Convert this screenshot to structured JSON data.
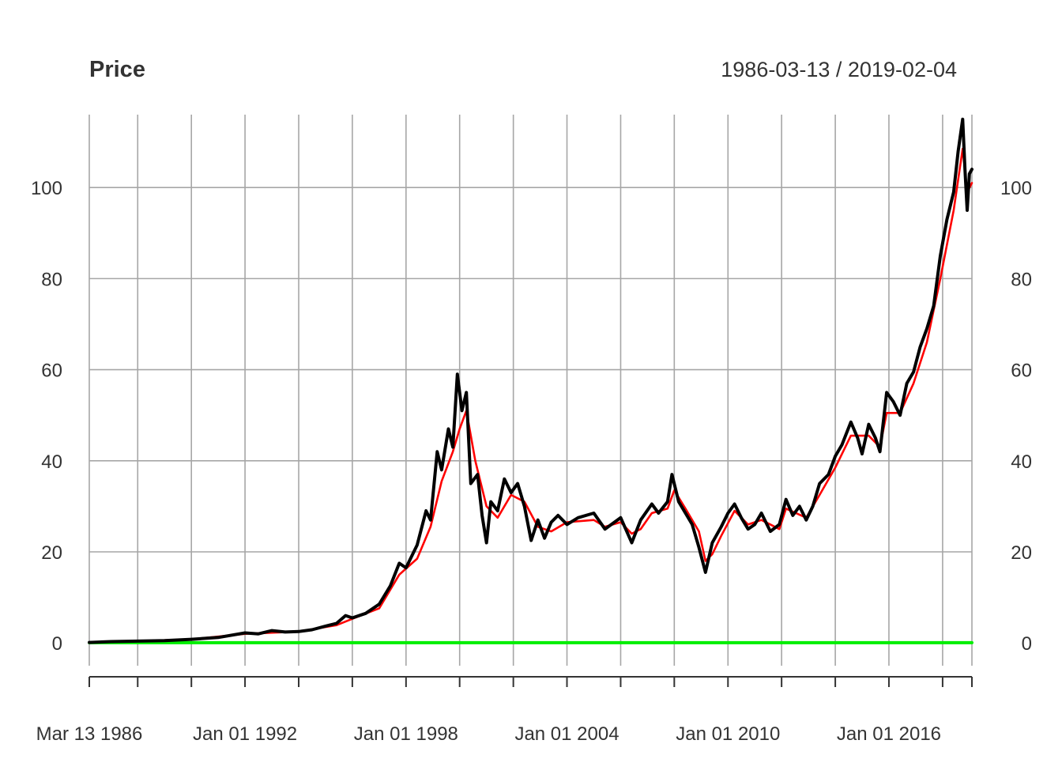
{
  "chart_data": {
    "type": "line",
    "title": "Price",
    "date_range_label": "1986-03-13 / 2019-02-04",
    "xlim": [
      "1986-03-13",
      "2019-02-04"
    ],
    "ylim": [
      -5,
      116
    ],
    "y_ticks": [
      0,
      20,
      40,
      60,
      80,
      100
    ],
    "x_tick_labels": [
      {
        "date": "1986-03-13",
        "label": "Mar 13 1986"
      },
      {
        "date": "1992-01-01",
        "label": "Jan 01 1992"
      },
      {
        "date": "1998-01-01",
        "label": "Jan 01 1998"
      },
      {
        "date": "2004-01-01",
        "label": "Jan 01 2004"
      },
      {
        "date": "2010-01-01",
        "label": "Jan 01 2010"
      },
      {
        "date": "2016-01-01",
        "label": "Jan 01 2016"
      }
    ],
    "grid_dates": [
      "1986-03-13",
      "1988-01-01",
      "1990-01-01",
      "1992-01-01",
      "1994-01-01",
      "1996-01-01",
      "1998-01-01",
      "2000-01-01",
      "2002-01-01",
      "2004-01-01",
      "2006-01-01",
      "2008-01-01",
      "2010-01-01",
      "2012-01-01",
      "2014-01-01",
      "2016-01-01",
      "2018-01-01",
      "2019-02-04"
    ],
    "grid": true,
    "series": [
      {
        "color": "#000000",
        "points": [
          [
            "1986-03-13",
            0.1
          ],
          [
            "1987-01-01",
            0.3
          ],
          [
            "1988-01-01",
            0.4
          ],
          [
            "1989-01-01",
            0.5
          ],
          [
            "1990-01-01",
            0.8
          ],
          [
            "1991-01-01",
            1.2
          ],
          [
            "1992-01-01",
            2.2
          ],
          [
            "1992-07-01",
            2.0
          ],
          [
            "1993-01-01",
            2.7
          ],
          [
            "1993-07-01",
            2.4
          ],
          [
            "1994-01-01",
            2.5
          ],
          [
            "1994-07-01",
            2.9
          ],
          [
            "1995-01-01",
            3.7
          ],
          [
            "1995-06-01",
            4.3
          ],
          [
            "1995-10-01",
            6.0
          ],
          [
            "1996-01-01",
            5.5
          ],
          [
            "1996-07-01",
            6.5
          ],
          [
            "1997-01-01",
            8.5
          ],
          [
            "1997-06-01",
            12.5
          ],
          [
            "1997-10-01",
            17.5
          ],
          [
            "1998-01-01",
            16.5
          ],
          [
            "1998-06-01",
            21.5
          ],
          [
            "1998-10-01",
            29.0
          ],
          [
            "1998-12-01",
            27.0
          ],
          [
            "1999-03-01",
            42.0
          ],
          [
            "1999-05-01",
            38.0
          ],
          [
            "1999-08-01",
            47.0
          ],
          [
            "1999-10-01",
            43.0
          ],
          [
            "1999-12-01",
            59.0
          ],
          [
            "2000-02-01",
            51.0
          ],
          [
            "2000-04-01",
            55.0
          ],
          [
            "2000-06-01",
            35.0
          ],
          [
            "2000-09-01",
            37.0
          ],
          [
            "2000-11-01",
            28.0
          ],
          [
            "2001-01-01",
            22.0
          ],
          [
            "2001-03-01",
            31.0
          ],
          [
            "2001-06-01",
            29.0
          ],
          [
            "2001-09-01",
            36.0
          ],
          [
            "2001-12-01",
            33.0
          ],
          [
            "2002-03-01",
            35.0
          ],
          [
            "2002-06-01",
            30.0
          ],
          [
            "2002-09-01",
            22.5
          ],
          [
            "2002-12-01",
            27.0
          ],
          [
            "2003-03-01",
            23.0
          ],
          [
            "2003-06-01",
            26.5
          ],
          [
            "2003-09-01",
            28.0
          ],
          [
            "2004-01-01",
            26.0
          ],
          [
            "2004-06-01",
            27.5
          ],
          [
            "2005-01-01",
            28.5
          ],
          [
            "2005-06-01",
            25.0
          ],
          [
            "2006-01-01",
            27.5
          ],
          [
            "2006-06-01",
            22.0
          ],
          [
            "2006-10-01",
            27.0
          ],
          [
            "2007-03-01",
            30.5
          ],
          [
            "2007-06-01",
            28.5
          ],
          [
            "2007-10-01",
            31.0
          ],
          [
            "2007-12-01",
            37.0
          ],
          [
            "2008-03-01",
            31.0
          ],
          [
            "2008-06-01",
            28.5
          ],
          [
            "2008-09-01",
            26.0
          ],
          [
            "2008-12-01",
            21.0
          ],
          [
            "2009-03-01",
            15.5
          ],
          [
            "2009-06-01",
            22.0
          ],
          [
            "2009-10-01",
            25.5
          ],
          [
            "2010-01-01",
            28.5
          ],
          [
            "2010-04-01",
            30.5
          ],
          [
            "2010-07-01",
            27.5
          ],
          [
            "2010-10-01",
            25.0
          ],
          [
            "2011-01-01",
            26.0
          ],
          [
            "2011-04-01",
            28.5
          ],
          [
            "2011-08-01",
            24.5
          ],
          [
            "2011-12-01",
            26.0
          ],
          [
            "2012-03-01",
            31.5
          ],
          [
            "2012-06-01",
            28.0
          ],
          [
            "2012-09-01",
            30.0
          ],
          [
            "2012-12-01",
            27.0
          ],
          [
            "2013-03-01",
            30.0
          ],
          [
            "2013-06-01",
            35.0
          ],
          [
            "2013-10-01",
            37.0
          ],
          [
            "2014-01-01",
            41.0
          ],
          [
            "2014-04-01",
            43.5
          ],
          [
            "2014-08-01",
            48.5
          ],
          [
            "2014-11-01",
            45.0
          ],
          [
            "2015-01-01",
            41.5
          ],
          [
            "2015-04-01",
            48.0
          ],
          [
            "2015-07-01",
            45.0
          ],
          [
            "2015-09-01",
            42.0
          ],
          [
            "2015-12-01",
            55.0
          ],
          [
            "2016-03-01",
            53.0
          ],
          [
            "2016-06-01",
            50.0
          ],
          [
            "2016-09-01",
            57.0
          ],
          [
            "2016-12-01",
            59.5
          ],
          [
            "2017-03-01",
            65.0
          ],
          [
            "2017-06-01",
            69.0
          ],
          [
            "2017-09-01",
            74.0
          ],
          [
            "2017-12-01",
            85.0
          ],
          [
            "2018-03-01",
            93.0
          ],
          [
            "2018-06-01",
            99.0
          ],
          [
            "2018-08-01",
            108.0
          ],
          [
            "2018-10-01",
            115.0
          ],
          [
            "2018-11-01",
            104.0
          ],
          [
            "2018-12-01",
            95.0
          ],
          [
            "2019-01-01",
            103.0
          ],
          [
            "2019-02-04",
            104.0
          ]
        ]
      },
      {
        "color": "#ff0000",
        "points": [
          [
            "1986-03-13",
            0.1
          ],
          [
            "1988-01-01",
            0.4
          ],
          [
            "1990-01-01",
            0.8
          ],
          [
            "1992-01-01",
            2.0
          ],
          [
            "1994-01-01",
            2.5
          ],
          [
            "1995-06-01",
            3.9
          ],
          [
            "1996-01-01",
            5.3
          ],
          [
            "1997-01-01",
            7.6
          ],
          [
            "1997-10-01",
            15.0
          ],
          [
            "1998-06-01",
            18.5
          ],
          [
            "1998-12-01",
            25.5
          ],
          [
            "1999-05-01",
            35.5
          ],
          [
            "1999-10-01",
            42.0
          ],
          [
            "2000-01-01",
            47.0
          ],
          [
            "2000-04-01",
            51.0
          ],
          [
            "2000-08-01",
            40.0
          ],
          [
            "2001-01-01",
            30.0
          ],
          [
            "2001-06-01",
            27.5
          ],
          [
            "2001-12-01",
            32.5
          ],
          [
            "2002-06-01",
            31.0
          ],
          [
            "2002-12-01",
            25.5
          ],
          [
            "2003-06-01",
            24.5
          ],
          [
            "2004-01-01",
            26.5
          ],
          [
            "2005-01-01",
            27.0
          ],
          [
            "2005-06-01",
            25.5
          ],
          [
            "2006-01-01",
            26.5
          ],
          [
            "2006-06-01",
            24.0
          ],
          [
            "2006-10-01",
            25.0
          ],
          [
            "2007-03-01",
            28.5
          ],
          [
            "2007-10-01",
            29.5
          ],
          [
            "2008-01-01",
            33.5
          ],
          [
            "2008-06-01",
            29.5
          ],
          [
            "2008-12-01",
            24.5
          ],
          [
            "2009-03-01",
            18.0
          ],
          [
            "2009-06-01",
            19.5
          ],
          [
            "2009-10-01",
            23.5
          ],
          [
            "2010-04-01",
            29.0
          ],
          [
            "2010-10-01",
            26.0
          ],
          [
            "2011-04-01",
            27.0
          ],
          [
            "2011-12-01",
            25.0
          ],
          [
            "2012-03-01",
            29.5
          ],
          [
            "2012-12-01",
            27.5
          ],
          [
            "2013-06-01",
            32.5
          ],
          [
            "2014-01-01",
            38.5
          ],
          [
            "2014-08-01",
            45.5
          ],
          [
            "2015-04-01",
            45.5
          ],
          [
            "2015-09-01",
            43.0
          ],
          [
            "2015-12-01",
            50.5
          ],
          [
            "2016-06-01",
            50.5
          ],
          [
            "2016-12-01",
            57.0
          ],
          [
            "2017-06-01",
            66.0
          ],
          [
            "2017-12-01",
            80.0
          ],
          [
            "2018-06-01",
            95.0
          ],
          [
            "2018-10-01",
            108.5
          ],
          [
            "2018-12-01",
            99.0
          ],
          [
            "2019-02-04",
            101.0
          ]
        ]
      },
      {
        "color": "#00ee00",
        "points": [
          [
            "1986-03-13",
            0.05
          ],
          [
            "2019-02-04",
            0.05
          ]
        ]
      }
    ]
  }
}
